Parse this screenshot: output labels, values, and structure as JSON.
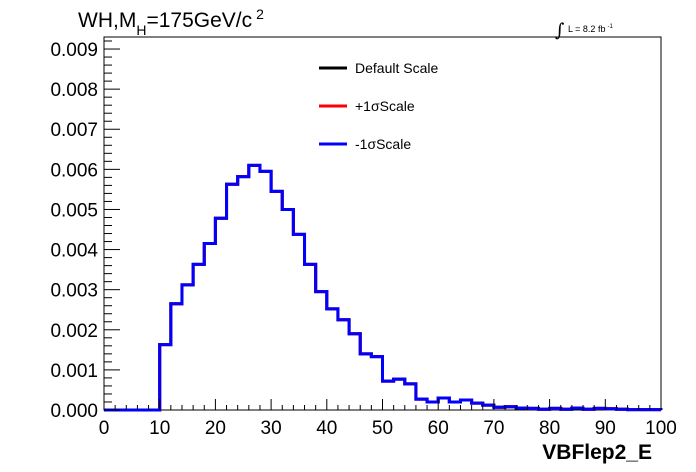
{
  "chart_data": {
    "type": "line",
    "title_main": "WH,M",
    "title_sub": "H",
    "title_rest": "=175GeV/c",
    "title_sup": "2",
    "lumi_prefix": "L = 8.2 fb",
    "lumi_sup": "-1",
    "xlabel": "VBFlep2_E",
    "ylabel": "",
    "xlim": [
      0,
      100
    ],
    "ylim": [
      0,
      0.0093
    ],
    "xticks": [
      "0",
      "10",
      "20",
      "30",
      "40",
      "50",
      "60",
      "70",
      "80",
      "90",
      "100"
    ],
    "xtick_values": [
      0,
      10,
      20,
      30,
      40,
      50,
      60,
      70,
      80,
      90,
      100
    ],
    "yticks": [
      "0.000",
      "0.001",
      "0.002",
      "0.003",
      "0.004",
      "0.005",
      "0.006",
      "0.007",
      "0.008",
      "0.009"
    ],
    "ytick_values": [
      0,
      0.001,
      0.002,
      0.003,
      0.004,
      0.005,
      0.006,
      0.007,
      0.008,
      0.009
    ],
    "grid": false,
    "legend_position": "top-center",
    "bin_width": 2,
    "bin_edges_start": 0,
    "bin_values": [
      0,
      0,
      0,
      0,
      0,
      0.00163,
      0.00265,
      0.00312,
      0.00363,
      0.00415,
      0.00478,
      0.00563,
      0.00582,
      0.0061,
      0.00595,
      0.00545,
      0.005,
      0.00438,
      0.00363,
      0.00295,
      0.00252,
      0.00225,
      0.0019,
      0.0014,
      0.00133,
      0.00072,
      0.00077,
      0.00065,
      0.00027,
      0.0002,
      0.0003,
      0.0002,
      0.00025,
      0.00017,
      0.00012,
      7e-05,
      8e-05,
      5e-05,
      4e-05,
      2e-05,
      4e-05,
      2e-05,
      5e-05,
      2e-05,
      4e-05,
      3e-05,
      2e-05,
      1e-05,
      1e-05,
      1e-05
    ],
    "series": [
      {
        "name": "Default Scale",
        "color": "#000000"
      },
      {
        "name": "+1σScale",
        "color": "#ff0000"
      },
      {
        "name": "-1σScale",
        "color": "#0000ff"
      }
    ]
  }
}
